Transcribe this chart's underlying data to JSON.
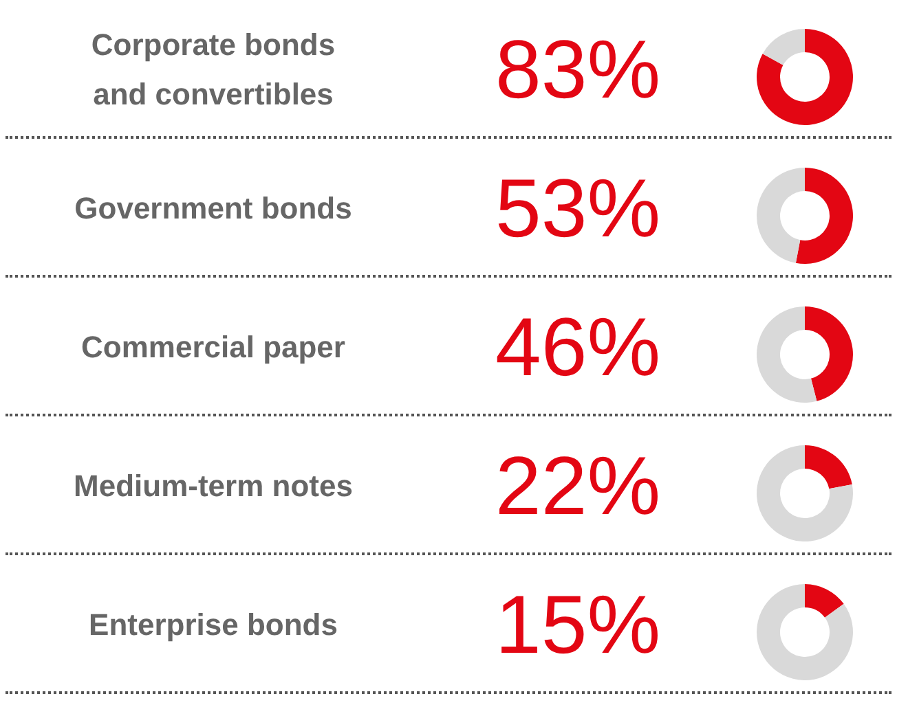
{
  "chart_data": [
    {
      "type": "donut",
      "title": "Corporate bonds\nand convertibles",
      "annotations": [
        "83%"
      ],
      "categories": [
        null,
        null
      ],
      "values": [
        83,
        17
      ],
      "colors": [
        "#e30613",
        "#d9d9d9"
      ]
    },
    {
      "type": "donut",
      "title": "Government bonds",
      "annotations": [
        "53%"
      ],
      "categories": [
        null,
        null
      ],
      "values": [
        53,
        47
      ],
      "colors": [
        "#e30613",
        "#d9d9d9"
      ]
    },
    {
      "type": "donut",
      "title": "Commercial paper",
      "annotations": [
        "46%"
      ],
      "categories": [
        null,
        null
      ],
      "values": [
        46,
        54
      ],
      "colors": [
        "#e30613",
        "#d9d9d9"
      ]
    },
    {
      "type": "donut",
      "title": "Medium-term notes",
      "annotations": [
        "22%"
      ],
      "categories": [
        null,
        null
      ],
      "values": [
        22,
        78
      ],
      "colors": [
        "#e30613",
        "#d9d9d9"
      ]
    },
    {
      "type": "donut",
      "title": "Enterprise bonds",
      "annotations": [
        "15%"
      ],
      "categories": [
        null,
        null
      ],
      "values": [
        15,
        85
      ],
      "colors": [
        "#e30613",
        "#d9d9d9"
      ]
    }
  ]
}
